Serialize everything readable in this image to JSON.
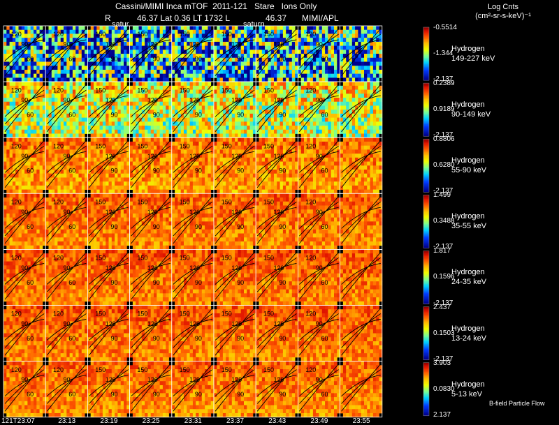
{
  "header": {
    "line1": "Cassini/MIMI Inca mTOF  2011-121   Stare   Ions Only",
    "line2_r": "R",
    "line2_mid": "46.37 Lat 0.36 LT 1732 L",
    "line2_l": "46.37",
    "line2_apl": "MIMI/APL",
    "saturn_a": "satur",
    "saturn_b": "saturn",
    "legend_title": "Log Cnts",
    "legend_units": "(cm²-sr-s-keV)⁻¹"
  },
  "footer": {
    "bfield": "B-field Particle Flow"
  },
  "chart_data": {
    "type": "heatmap",
    "time_labels": [
      "121T23:07",
      "23:13",
      "23:19",
      "23:25",
      "23:31",
      "23:37",
      "23:43",
      "23:49",
      "23:55"
    ],
    "contour_labels": [
      "120",
      "90",
      "60",
      "150",
      "3"
    ],
    "bands": [
      {
        "species": "Hydrogen",
        "energy": "149-227 keV",
        "max": "-0.5514",
        "mid": "-1.344",
        "min": "-2.137",
        "level": 0.35,
        "noise": 0.45
      },
      {
        "species": "Hydrogen",
        "energy": "90-149 keV",
        "max": "0.2389",
        "mid": "0.9189",
        "min": "-2.137",
        "level": 0.62,
        "noise": 0.25
      },
      {
        "species": "Hydrogen",
        "energy": "55-90 keV",
        "max": "0.8806",
        "mid": "0.6280",
        "min": "-2.137",
        "level": 0.8,
        "noise": 0.12
      },
      {
        "species": "Hydrogen",
        "energy": "35-55 keV",
        "max": "1.499",
        "mid": "0.3488",
        "min": "-2.137",
        "level": 0.83,
        "noise": 0.1
      },
      {
        "species": "Hydrogen",
        "energy": "24-35 keV",
        "max": "1.817",
        "mid": "0.1596",
        "min": "-2.137",
        "level": 0.84,
        "noise": 0.1
      },
      {
        "species": "Hydrogen",
        "energy": "13-24 keV",
        "max": "2.437",
        "mid": "0.1503",
        "min": "-2.137",
        "level": 0.84,
        "noise": 0.1
      },
      {
        "species": "Hydrogen",
        "energy": "5-13 keV",
        "max": "3.903",
        "mid": "0.0830",
        "min": "2.137",
        "level": 0.82,
        "noise": 0.1
      }
    ]
  }
}
